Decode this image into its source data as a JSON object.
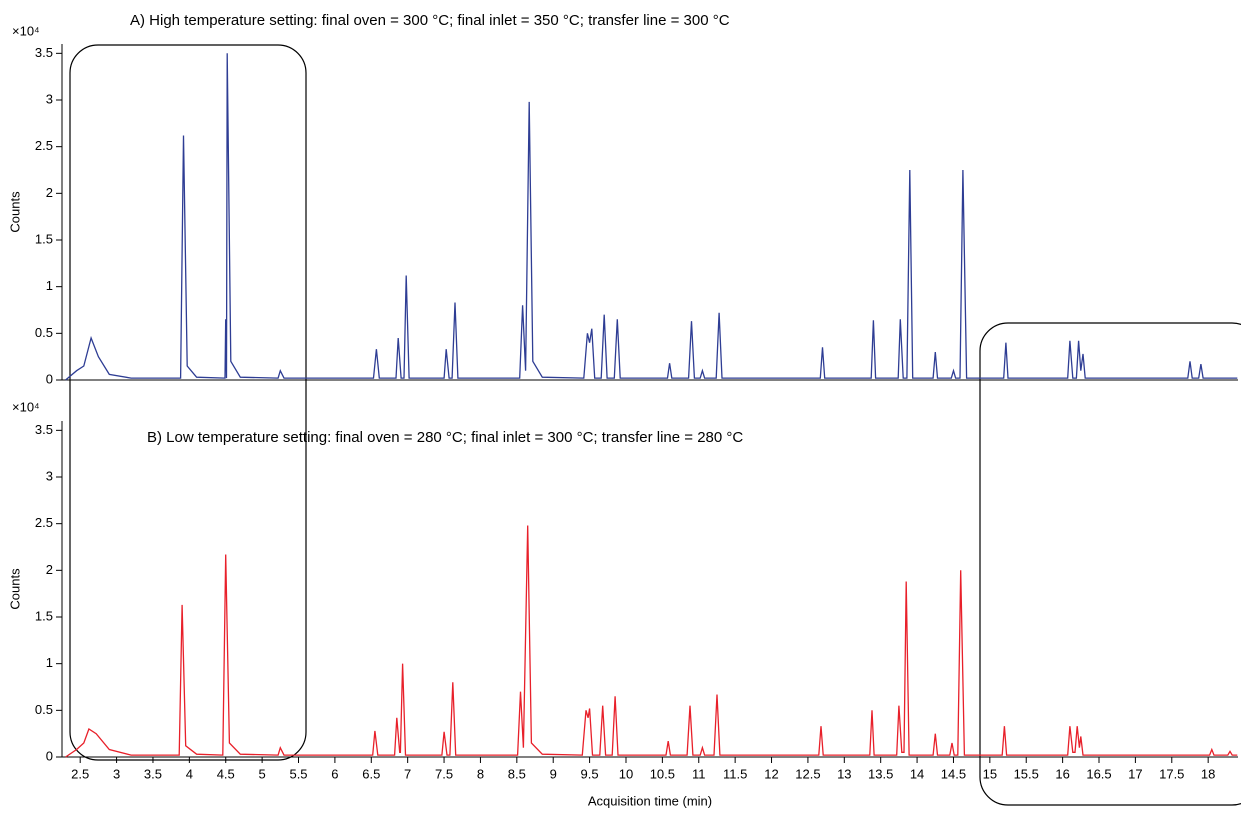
{
  "chart_data": [
    {
      "type": "line",
      "title": "A) High temperature setting: final oven = 300 °C; final inlet = 350 °C; transfer line = 300 °C",
      "ylabel": "Counts",
      "multiplier": "×10⁴",
      "color": "#2e3d94",
      "xlim": [
        2.25,
        18.41
      ],
      "ylim": [
        0,
        3.6
      ],
      "yticks": [
        0,
        0.5,
        1,
        1.5,
        2,
        2.5,
        3,
        3.5
      ],
      "x": [
        2.3,
        2.45,
        2.55,
        2.65,
        2.75,
        2.9,
        3.2,
        3.88,
        3.92,
        3.97,
        4.1,
        4.49,
        4.5,
        4.51,
        4.52,
        4.57,
        4.7,
        5.22,
        5.25,
        5.3,
        6.53,
        6.57,
        6.61,
        6.84,
        6.87,
        6.91,
        6.95,
        6.98,
        7.02,
        7.5,
        7.53,
        7.57,
        7.61,
        7.65,
        7.69,
        8.54,
        8.58,
        8.62,
        8.67,
        8.72,
        8.85,
        9.42,
        9.47,
        9.5,
        9.53,
        9.57,
        9.66,
        9.7,
        9.74,
        9.84,
        9.88,
        9.92,
        10.57,
        10.6,
        10.63,
        10.86,
        10.9,
        10.94,
        11.02,
        11.05,
        11.08,
        11.24,
        11.28,
        11.32,
        12.67,
        12.7,
        12.73,
        13.37,
        13.4,
        13.43,
        13.74,
        13.77,
        13.81,
        13.86,
        13.9,
        13.94,
        14.22,
        14.25,
        14.28,
        14.47,
        14.5,
        14.53,
        14.59,
        14.63,
        14.68,
        15.19,
        15.22,
        15.25,
        16.07,
        16.1,
        16.14,
        16.19,
        16.22,
        16.25,
        16.28,
        16.31,
        17.72,
        17.75,
        17.78,
        17.87,
        17.9,
        17.93,
        18.4
      ],
      "values": [
        0,
        0.1,
        0.15,
        0.45,
        0.25,
        0.06,
        0.02,
        0.02,
        2.62,
        0.15,
        0.03,
        0.02,
        0.65,
        0.02,
        3.5,
        0.2,
        0.03,
        0.02,
        0.1,
        0.02,
        0.02,
        0.33,
        0.02,
        0.02,
        0.45,
        0.02,
        0.02,
        1.12,
        0.02,
        0.02,
        0.33,
        0.02,
        0.02,
        0.83,
        0.02,
        0.02,
        0.8,
        0.1,
        2.98,
        0.2,
        0.03,
        0.02,
        0.5,
        0.4,
        0.55,
        0.02,
        0.02,
        0.7,
        0.02,
        0.02,
        0.65,
        0.02,
        0.02,
        0.18,
        0.02,
        0.02,
        0.63,
        0.02,
        0.02,
        0.1,
        0.02,
        0.02,
        0.72,
        0.02,
        0.02,
        0.35,
        0.02,
        0.02,
        0.64,
        0.02,
        0.02,
        0.65,
        0.02,
        0.02,
        2.25,
        0.02,
        0.02,
        0.3,
        0.02,
        0.02,
        0.1,
        0.02,
        0.02,
        2.25,
        0.02,
        0.02,
        0.4,
        0.02,
        0.02,
        0.42,
        0.02,
        0.02,
        0.42,
        0.1,
        0.28,
        0.02,
        0.02,
        0.2,
        0.02,
        0.02,
        0.17,
        0.02,
        0.02
      ]
    },
    {
      "type": "line",
      "title": "B) Low temperature setting: final oven = 280 °C; final inlet = 300 °C; transfer line = 280 °C",
      "ylabel": "Counts",
      "multiplier": "×10⁴",
      "xlabel": "Acquisition time (min)",
      "color": "#e8202a",
      "xlim": [
        2.25,
        18.41
      ],
      "ylim": [
        0,
        3.6
      ],
      "yticks": [
        0,
        0.5,
        1,
        1.5,
        2,
        2.5,
        3,
        3.5
      ],
      "xticks": [
        2.5,
        3,
        3.5,
        4,
        4.5,
        5,
        5.5,
        6,
        6.5,
        7,
        7.5,
        8,
        8.5,
        9,
        9.5,
        10,
        10.5,
        11,
        11.5,
        12,
        12.5,
        13,
        13.5,
        14,
        14.5,
        15,
        15.5,
        16,
        16.5,
        17,
        17.5,
        18
      ],
      "x": [
        2.3,
        2.45,
        2.55,
        2.62,
        2.72,
        2.9,
        3.2,
        3.86,
        3.9,
        3.95,
        4.1,
        4.46,
        4.5,
        4.55,
        4.7,
        5.22,
        5.25,
        5.3,
        6.52,
        6.55,
        6.59,
        6.82,
        6.85,
        6.89,
        6.9,
        6.93,
        6.97,
        7.47,
        7.5,
        7.54,
        7.58,
        7.62,
        7.66,
        8.51,
        8.55,
        8.59,
        8.65,
        8.7,
        8.85,
        9.4,
        9.45,
        9.48,
        9.5,
        9.54,
        9.64,
        9.68,
        9.72,
        9.81,
        9.85,
        9.89,
        10.55,
        10.58,
        10.61,
        10.84,
        10.88,
        10.92,
        11.02,
        11.05,
        11.08,
        11.21,
        11.25,
        11.29,
        12.65,
        12.68,
        12.71,
        13.35,
        13.38,
        13.41,
        13.72,
        13.75,
        13.79,
        13.82,
        13.85,
        13.89,
        14.22,
        14.25,
        14.28,
        14.45,
        14.48,
        14.51,
        14.56,
        14.6,
        14.65,
        15.17,
        15.2,
        15.23,
        16.07,
        16.1,
        16.14,
        16.17,
        16.2,
        16.23,
        16.25,
        16.28,
        18.02,
        18.05,
        18.08,
        18.27,
        18.3,
        18.33,
        18.4
      ],
      "values": [
        0,
        0.08,
        0.15,
        0.3,
        0.25,
        0.08,
        0.02,
        0.02,
        1.63,
        0.12,
        0.03,
        0.02,
        2.17,
        0.15,
        0.03,
        0.02,
        0.1,
        0.02,
        0.02,
        0.28,
        0.02,
        0.02,
        0.42,
        0.05,
        0.05,
        1.0,
        0.02,
        0.02,
        0.27,
        0.02,
        0.02,
        0.8,
        0.02,
        0.02,
        0.7,
        0.1,
        2.48,
        0.15,
        0.03,
        0.02,
        0.5,
        0.42,
        0.52,
        0.02,
        0.02,
        0.55,
        0.02,
        0.02,
        0.65,
        0.02,
        0.02,
        0.17,
        0.02,
        0.02,
        0.55,
        0.02,
        0.02,
        0.1,
        0.02,
        0.02,
        0.67,
        0.02,
        0.02,
        0.33,
        0.02,
        0.02,
        0.5,
        0.02,
        0.02,
        0.55,
        0.05,
        0.05,
        1.88,
        0.02,
        0.02,
        0.25,
        0.02,
        0.02,
        0.15,
        0.02,
        0.02,
        2.0,
        0.02,
        0.02,
        0.33,
        0.02,
        0.02,
        0.33,
        0.05,
        0.05,
        0.33,
        0.1,
        0.22,
        0.02,
        0.02,
        0.08,
        0.02,
        0.02,
        0.06,
        0.02,
        0.02
      ]
    }
  ]
}
